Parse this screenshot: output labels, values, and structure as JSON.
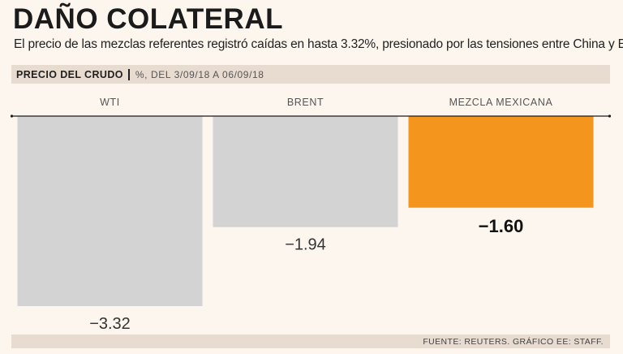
{
  "header": {
    "title": "DAÑO COLATERAL",
    "subtitle": "El precio de las mezclas referentes registró caídas en hasta 3.32%, presionado por las tensiones entre China y EU."
  },
  "band": {
    "label": "PRECIO DEL CRUDO",
    "note": "%, DEL 3/09/18 A 06/09/18"
  },
  "footer": {
    "source": "FUENTE: REUTERS. GRÁFICO EE: STAFF."
  },
  "colors": {
    "grey_bar": "#d3d3d4",
    "highlight_bar": "#f4961e",
    "axis": "#1b1b1b",
    "category_text": "#555555",
    "value_text": "#333333"
  },
  "chart_data": {
    "type": "bar",
    "title": "PRECIO DEL CRUDO",
    "ylabel": "%, DEL 3/09/18 A 06/09/18",
    "categories": [
      "WTI",
      "BRENT",
      "MEZCLA MEXICANA"
    ],
    "values": [
      -3.32,
      -1.94,
      -1.6
    ],
    "value_labels": [
      "−3.32",
      "−1.94",
      "−1.60"
    ],
    "highlight": [
      false,
      false,
      true
    ],
    "ylim": [
      -3.32,
      0
    ],
    "grid": false,
    "legend": "none"
  }
}
